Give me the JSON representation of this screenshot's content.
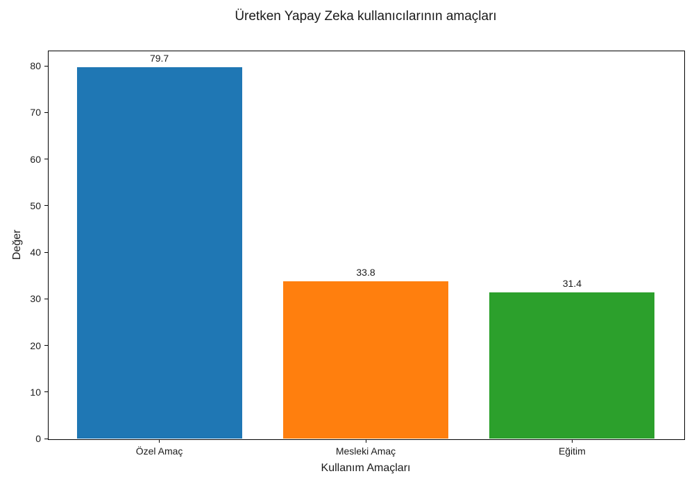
{
  "chart_data": {
    "type": "bar",
    "title": "Üretken Yapay Zeka kullanıcılarının amaçları",
    "xlabel": "Kullanım Amaçları",
    "ylabel": "Değer",
    "categories": [
      "Özel Amaç",
      "Mesleki Amaç",
      "Eğitim"
    ],
    "values": [
      79.7,
      33.8,
      31.4
    ],
    "value_labels": [
      "79.7",
      "33.8",
      "31.4"
    ],
    "bar_colors": [
      "#1f77b4",
      "#ff7f0e",
      "#2ca02c"
    ],
    "yticks": [
      0,
      10,
      20,
      30,
      40,
      50,
      60,
      70,
      80
    ],
    "ylim": [
      0,
      83.3
    ],
    "grid": false,
    "legend_position": "none",
    "background_color": "#ffffff",
    "text_color": "#1a1a1a",
    "axis_color": "#000000"
  }
}
